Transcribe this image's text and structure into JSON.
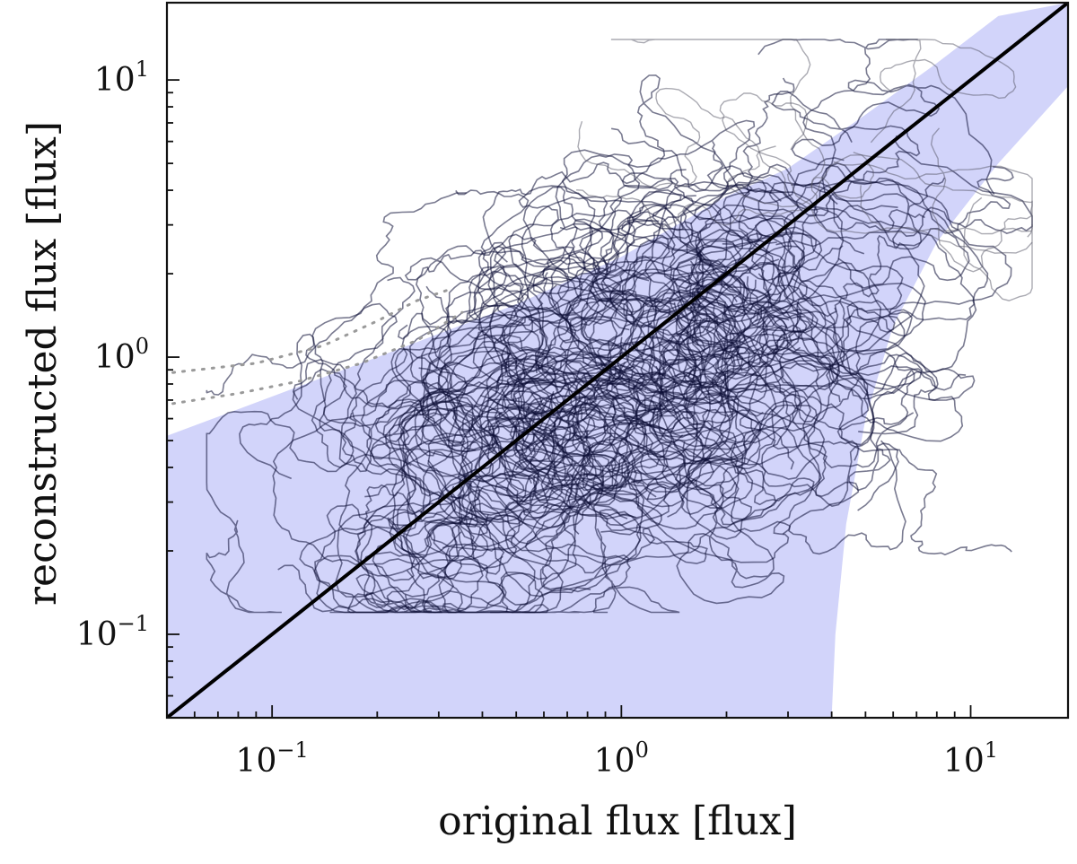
{
  "chart_data": {
    "type": "scatter",
    "title": "",
    "xlabel": "original flux [flux]",
    "ylabel": "reconstructed flux [flux]",
    "xscale": "log",
    "yscale": "log",
    "xlim": [
      0.05,
      19
    ],
    "ylim": [
      0.05,
      19
    ],
    "x_ticks": [
      {
        "value": 0.1,
        "base": "10",
        "exp": "−1"
      },
      {
        "value": 1,
        "base": "10",
        "exp": "0"
      },
      {
        "value": 10,
        "base": "10",
        "exp": "1"
      }
    ],
    "y_ticks": [
      {
        "value": 0.1,
        "base": "10",
        "exp": "−1"
      },
      {
        "value": 1,
        "base": "10",
        "exp": "0"
      },
      {
        "value": 10,
        "base": "10",
        "exp": "1"
      }
    ],
    "grid": false,
    "legend": "none",
    "identity_line": {
      "from": [
        0.05,
        0.05
      ],
      "to": [
        19,
        19
      ],
      "color": "#000000"
    },
    "confidence_band": {
      "color": "#d2d4fa",
      "upper": [
        [
          0.05,
          0.52
        ],
        [
          0.2,
          1.0
        ],
        [
          0.5,
          1.55
        ],
        [
          1,
          2.3
        ],
        [
          2,
          3.8
        ],
        [
          3,
          4.8
        ],
        [
          5,
          7.5
        ],
        [
          8,
          11.5
        ],
        [
          12,
          17
        ],
        [
          19,
          19
        ]
      ],
      "lower": [
        [
          19,
          9.5
        ],
        [
          12,
          5
        ],
        [
          8,
          2.6
        ],
        [
          6,
          1.3
        ],
        [
          5,
          0.6
        ],
        [
          4.4,
          0.25
        ],
        [
          4.1,
          0.1
        ],
        [
          4.0,
          0.05
        ]
      ]
    },
    "trajectories": {
      "color": "#0b0c35",
      "count": 130,
      "center": [
        0.95,
        0.75
      ],
      "x_range": [
        0.065,
        15
      ],
      "y_range": [
        0.12,
        14
      ]
    },
    "outlier_dotted_paths": [
      [
        [
          0.052,
          0.68
        ],
        [
          0.08,
          0.74
        ],
        [
          0.12,
          0.82
        ],
        [
          0.18,
          0.95
        ],
        [
          0.26,
          1.15
        ],
        [
          0.35,
          1.45
        ]
      ],
      [
        [
          0.052,
          0.88
        ],
        [
          0.09,
          0.95
        ],
        [
          0.14,
          1.1
        ],
        [
          0.2,
          1.35
        ],
        [
          0.26,
          1.6
        ],
        [
          0.32,
          1.75
        ]
      ]
    ]
  }
}
